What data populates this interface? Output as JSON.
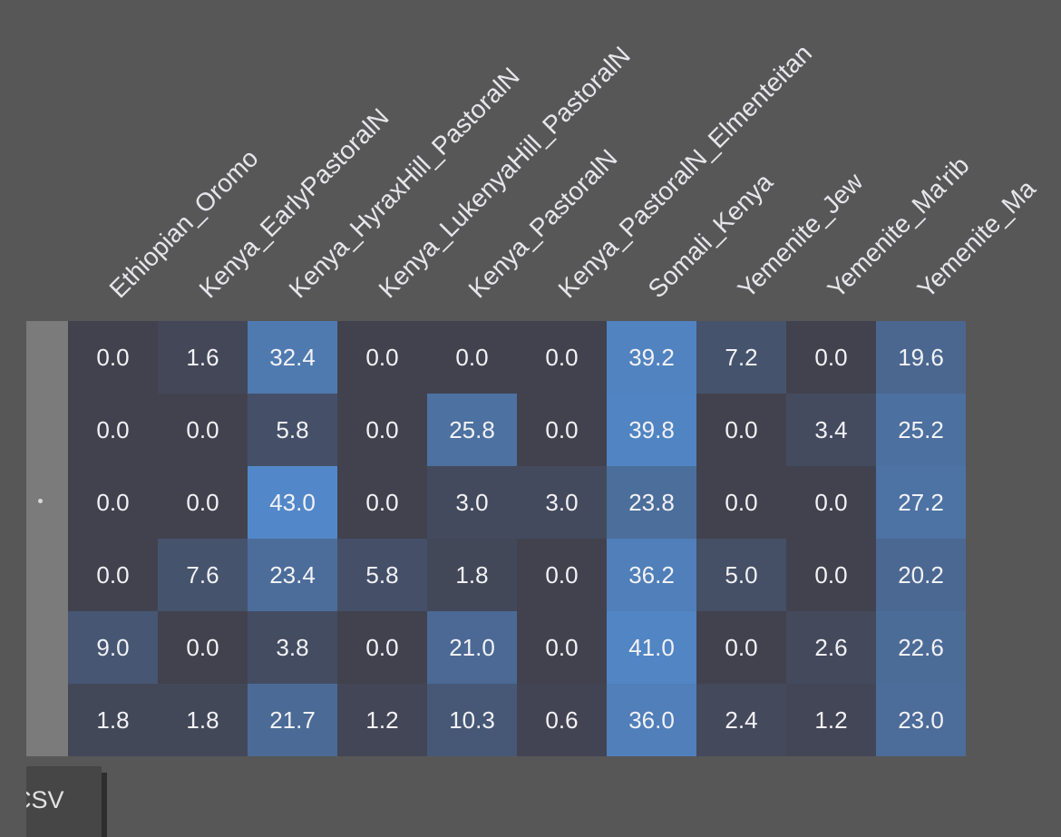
{
  "columns": [
    "Ethiopian_Oromo",
    "Kenya_EarlyPastoralN",
    "Kenya_HyraxHill_PastoralN",
    "Kenya_LukenyaHill_PastoralN",
    "Kenya_PastoralN",
    "Kenya_PastoralN_Elmenteitan",
    "Somali_Kenya",
    "Yemenite_Jew",
    "Yemenite_Ma'rib",
    "Yemenite_Ma"
  ],
  "rows": [
    [
      "0.0",
      "1.6",
      "32.4",
      "0.0",
      "0.0",
      "0.0",
      "39.2",
      "7.2",
      "0.0",
      "19.6"
    ],
    [
      "0.0",
      "0.0",
      "5.8",
      "0.0",
      "25.8",
      "0.0",
      "39.8",
      "0.0",
      "3.4",
      "25.2"
    ],
    [
      "0.0",
      "0.0",
      "43.0",
      "0.0",
      "3.0",
      "3.0",
      "23.8",
      "0.0",
      "0.0",
      "27.2"
    ],
    [
      "0.0",
      "7.6",
      "23.4",
      "5.8",
      "1.8",
      "0.0",
      "36.2",
      "5.0",
      "0.0",
      "20.2"
    ],
    [
      "9.0",
      "0.0",
      "3.8",
      "0.0",
      "21.0",
      "0.0",
      "41.0",
      "0.0",
      "2.6",
      "22.6"
    ],
    [
      "1.8",
      "1.8",
      "21.7",
      "1.2",
      "10.3",
      "0.6",
      "36.0",
      "2.4",
      "1.2",
      "23.0"
    ]
  ],
  "row_marker": "•",
  "csv_button_label": "CSV",
  "colors": {
    "background": "#575757",
    "cell_low": "#42424f",
    "cell_high": "#5288c9",
    "gutter": "#7b7b7b",
    "button": "#464646"
  }
}
